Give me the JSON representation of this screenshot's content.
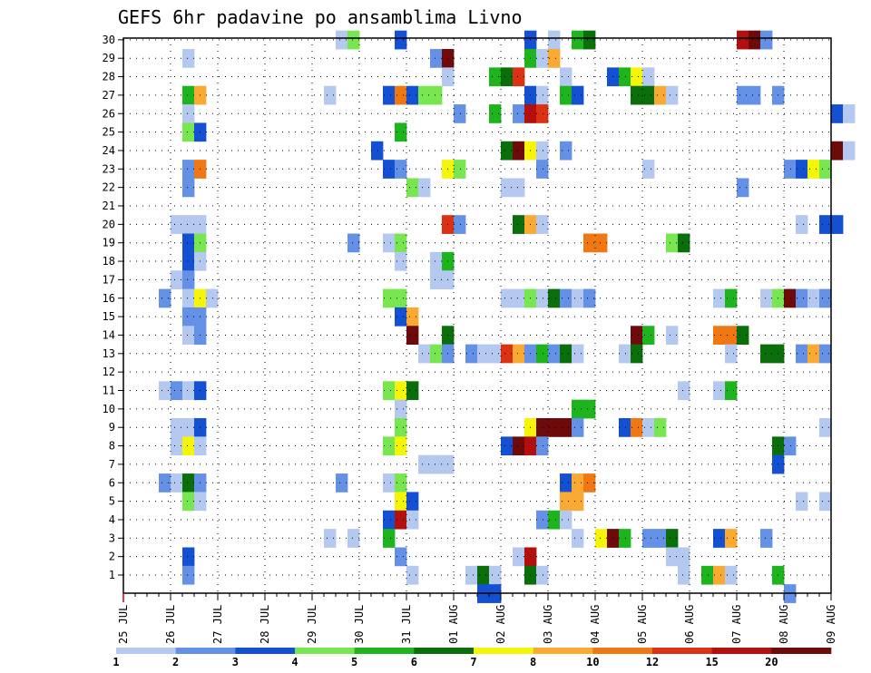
{
  "chart_data": {
    "type": "heatmap",
    "title": "GEFS 6hr padavine po ansamblima Livno",
    "xlabel": "",
    "ylabel": "",
    "x_tick_labels": [
      "25 JUL",
      "26 JUL",
      "27 JUL",
      "28 JUL",
      "29 JUL",
      "30 JUL",
      "31 JUL",
      "01 AUG",
      "02 AUG",
      "03 AUG",
      "04 AUG",
      "05 AUG",
      "06 AUG",
      "07 AUG",
      "08 AUG",
      "09 AUG"
    ],
    "y_tick_labels": [
      "1",
      "2",
      "3",
      "4",
      "5",
      "6",
      "7",
      "8",
      "9",
      "10",
      "11",
      "12",
      "13",
      "14",
      "15",
      "16",
      "17",
      "18",
      "19",
      "20",
      "21",
      "22",
      "23",
      "24",
      "25",
      "26",
      "27",
      "28",
      "29",
      "30"
    ],
    "x_unit": "6-hour step (4 per day), starting 25 JUL 00",
    "grid": true,
    "colorbar": {
      "labels": [
        "1",
        "2",
        "3",
        "4",
        "5",
        "6",
        "7",
        "8",
        "10",
        "12",
        "15",
        "20"
      ],
      "colors": [
        "#b4c8f0",
        "#6491e6",
        "#1450d2",
        "#78e650",
        "#1eb41e",
        "#0a6e0a",
        "#f5f50a",
        "#faaa32",
        "#f07814",
        "#dc3214",
        "#b40f0f",
        "#6e0a0a"
      ]
    },
    "cells_format": "[member, time_step, color_class_index]",
    "cells": [
      [
        30,
        18,
        0
      ],
      [
        30,
        19,
        3
      ],
      [
        30,
        23,
        2
      ],
      [
        30,
        34,
        2
      ],
      [
        30,
        36,
        0
      ],
      [
        30,
        38,
        4
      ],
      [
        30,
        39,
        5
      ],
      [
        30,
        52,
        10
      ],
      [
        30,
        53,
        11
      ],
      [
        30,
        54,
        1
      ],
      [
        29,
        5,
        0
      ],
      [
        29,
        26,
        1
      ],
      [
        29,
        27,
        11
      ],
      [
        29,
        34,
        4
      ],
      [
        29,
        35,
        0
      ],
      [
        29,
        36,
        7
      ],
      [
        28,
        27,
        0
      ],
      [
        28,
        31,
        4
      ],
      [
        28,
        32,
        5
      ],
      [
        28,
        33,
        9
      ],
      [
        28,
        37,
        0
      ],
      [
        28,
        41,
        2
      ],
      [
        28,
        42,
        4
      ],
      [
        28,
        43,
        6
      ],
      [
        28,
        44,
        0
      ],
      [
        27,
        5,
        4
      ],
      [
        27,
        6,
        7
      ],
      [
        27,
        17,
        0
      ],
      [
        27,
        22,
        2
      ],
      [
        27,
        23,
        8
      ],
      [
        27,
        24,
        2
      ],
      [
        27,
        25,
        3
      ],
      [
        27,
        26,
        3
      ],
      [
        27,
        34,
        2
      ],
      [
        27,
        35,
        0
      ],
      [
        27,
        37,
        4
      ],
      [
        27,
        38,
        2
      ],
      [
        27,
        43,
        5
      ],
      [
        27,
        44,
        5
      ],
      [
        27,
        45,
        7
      ],
      [
        27,
        46,
        0
      ],
      [
        27,
        52,
        1
      ],
      [
        27,
        53,
        1
      ],
      [
        27,
        55,
        1
      ],
      [
        26,
        5,
        0
      ],
      [
        26,
        28,
        1
      ],
      [
        26,
        31,
        4
      ],
      [
        26,
        33,
        1
      ],
      [
        26,
        34,
        10
      ],
      [
        26,
        35,
        9
      ],
      [
        26,
        60,
        2
      ],
      [
        26,
        61,
        0
      ],
      [
        25,
        5,
        3
      ],
      [
        25,
        6,
        2
      ],
      [
        25,
        23,
        4
      ],
      [
        24,
        21,
        2
      ],
      [
        24,
        32,
        5
      ],
      [
        24,
        33,
        11
      ],
      [
        24,
        34,
        6
      ],
      [
        24,
        35,
        0
      ],
      [
        24,
        37,
        1
      ],
      [
        24,
        60,
        11
      ],
      [
        24,
        61,
        0
      ],
      [
        23,
        5,
        1
      ],
      [
        23,
        6,
        8
      ],
      [
        23,
        22,
        2
      ],
      [
        23,
        23,
        1
      ],
      [
        23,
        27,
        6
      ],
      [
        23,
        28,
        3
      ],
      [
        23,
        35,
        1
      ],
      [
        23,
        44,
        0
      ],
      [
        23,
        56,
        1
      ],
      [
        23,
        57,
        2
      ],
      [
        23,
        58,
        6
      ],
      [
        23,
        59,
        3
      ],
      [
        22,
        5,
        1
      ],
      [
        22,
        24,
        3
      ],
      [
        22,
        25,
        0
      ],
      [
        22,
        32,
        0
      ],
      [
        22,
        33,
        0
      ],
      [
        22,
        52,
        1
      ],
      [
        20,
        4,
        0
      ],
      [
        20,
        5,
        0
      ],
      [
        20,
        6,
        0
      ],
      [
        20,
        27,
        9
      ],
      [
        20,
        28,
        1
      ],
      [
        20,
        33,
        5
      ],
      [
        20,
        34,
        7
      ],
      [
        20,
        35,
        0
      ],
      [
        20,
        57,
        0
      ],
      [
        20,
        59,
        2
      ],
      [
        20,
        60,
        2
      ],
      [
        19,
        5,
        2
      ],
      [
        19,
        6,
        3
      ],
      [
        19,
        19,
        1
      ],
      [
        19,
        22,
        0
      ],
      [
        19,
        23,
        3
      ],
      [
        19,
        39,
        8
      ],
      [
        19,
        40,
        8
      ],
      [
        19,
        46,
        3
      ],
      [
        19,
        47,
        5
      ],
      [
        18,
        5,
        2
      ],
      [
        18,
        6,
        0
      ],
      [
        18,
        23,
        0
      ],
      [
        18,
        26,
        0
      ],
      [
        18,
        27,
        4
      ],
      [
        17,
        4,
        0
      ],
      [
        17,
        5,
        1
      ],
      [
        17,
        26,
        0
      ],
      [
        17,
        27,
        0
      ],
      [
        16,
        3,
        1
      ],
      [
        16,
        5,
        0
      ],
      [
        16,
        6,
        6
      ],
      [
        16,
        7,
        0
      ],
      [
        16,
        22,
        3
      ],
      [
        16,
        23,
        3
      ],
      [
        16,
        32,
        0
      ],
      [
        16,
        33,
        0
      ],
      [
        16,
        34,
        3
      ],
      [
        16,
        35,
        0
      ],
      [
        16,
        36,
        5
      ],
      [
        16,
        37,
        1
      ],
      [
        16,
        38,
        0
      ],
      [
        16,
        39,
        1
      ],
      [
        16,
        50,
        0
      ],
      [
        16,
        51,
        4
      ],
      [
        16,
        54,
        0
      ],
      [
        16,
        55,
        3
      ],
      [
        16,
        56,
        11
      ],
      [
        16,
        57,
        1
      ],
      [
        16,
        58,
        0
      ],
      [
        16,
        59,
        1
      ],
      [
        15,
        5,
        1
      ],
      [
        15,
        6,
        1
      ],
      [
        15,
        23,
        2
      ],
      [
        15,
        24,
        7
      ],
      [
        14,
        5,
        0
      ],
      [
        14,
        6,
        1
      ],
      [
        14,
        24,
        11
      ],
      [
        14,
        27,
        5
      ],
      [
        14,
        43,
        11
      ],
      [
        14,
        44,
        4
      ],
      [
        14,
        46,
        0
      ],
      [
        14,
        50,
        8
      ],
      [
        14,
        51,
        8
      ],
      [
        14,
        52,
        5
      ],
      [
        13,
        25,
        0
      ],
      [
        13,
        26,
        3
      ],
      [
        13,
        27,
        1
      ],
      [
        13,
        29,
        1
      ],
      [
        13,
        30,
        0
      ],
      [
        13,
        31,
        0
      ],
      [
        13,
        32,
        9
      ],
      [
        13,
        33,
        7
      ],
      [
        13,
        34,
        1
      ],
      [
        13,
        35,
        4
      ],
      [
        13,
        36,
        1
      ],
      [
        13,
        37,
        5
      ],
      [
        13,
        38,
        0
      ],
      [
        13,
        42,
        0
      ],
      [
        13,
        43,
        5
      ],
      [
        13,
        51,
        0
      ],
      [
        13,
        54,
        5
      ],
      [
        13,
        55,
        5
      ],
      [
        13,
        57,
        1
      ],
      [
        13,
        58,
        7
      ],
      [
        13,
        59,
        1
      ],
      [
        11,
        3,
        0
      ],
      [
        11,
        4,
        1
      ],
      [
        11,
        5,
        0
      ],
      [
        11,
        6,
        2
      ],
      [
        11,
        22,
        3
      ],
      [
        11,
        23,
        6
      ],
      [
        11,
        24,
        5
      ],
      [
        11,
        47,
        0
      ],
      [
        11,
        50,
        0
      ],
      [
        11,
        51,
        4
      ],
      [
        10,
        23,
        0
      ],
      [
        10,
        38,
        4
      ],
      [
        10,
        39,
        4
      ],
      [
        9,
        4,
        0
      ],
      [
        9,
        5,
        0
      ],
      [
        9,
        6,
        2
      ],
      [
        9,
        23,
        3
      ],
      [
        9,
        34,
        6
      ],
      [
        9,
        35,
        11
      ],
      [
        9,
        36,
        11
      ],
      [
        9,
        37,
        11
      ],
      [
        9,
        38,
        1
      ],
      [
        9,
        42,
        2
      ],
      [
        9,
        43,
        8
      ],
      [
        9,
        44,
        0
      ],
      [
        9,
        45,
        3
      ],
      [
        9,
        59,
        0
      ],
      [
        8,
        4,
        0
      ],
      [
        8,
        5,
        6
      ],
      [
        8,
        6,
        0
      ],
      [
        8,
        22,
        3
      ],
      [
        8,
        23,
        6
      ],
      [
        8,
        32,
        2
      ],
      [
        8,
        33,
        11
      ],
      [
        8,
        34,
        10
      ],
      [
        8,
        35,
        1
      ],
      [
        8,
        55,
        5
      ],
      [
        8,
        56,
        1
      ],
      [
        7,
        25,
        0
      ],
      [
        7,
        26,
        0
      ],
      [
        7,
        27,
        0
      ],
      [
        7,
        55,
        2
      ],
      [
        6,
        3,
        1
      ],
      [
        6,
        4,
        0
      ],
      [
        6,
        5,
        5
      ],
      [
        6,
        6,
        1
      ],
      [
        6,
        18,
        1
      ],
      [
        6,
        22,
        0
      ],
      [
        6,
        23,
        3
      ],
      [
        6,
        37,
        2
      ],
      [
        6,
        38,
        7
      ],
      [
        6,
        39,
        8
      ],
      [
        5,
        5,
        3
      ],
      [
        5,
        6,
        0
      ],
      [
        5,
        23,
        6
      ],
      [
        5,
        24,
        2
      ],
      [
        5,
        37,
        7
      ],
      [
        5,
        38,
        7
      ],
      [
        5,
        57,
        0
      ],
      [
        5,
        59,
        0
      ],
      [
        4,
        22,
        2
      ],
      [
        4,
        23,
        10
      ],
      [
        4,
        24,
        0
      ],
      [
        4,
        35,
        1
      ],
      [
        4,
        36,
        4
      ],
      [
        4,
        37,
        0
      ],
      [
        3,
        17,
        0
      ],
      [
        3,
        19,
        0
      ],
      [
        3,
        22,
        4
      ],
      [
        3,
        38,
        0
      ],
      [
        3,
        40,
        6
      ],
      [
        3,
        41,
        11
      ],
      [
        3,
        42,
        4
      ],
      [
        3,
        44,
        1
      ],
      [
        3,
        45,
        1
      ],
      [
        3,
        46,
        5
      ],
      [
        3,
        50,
        2
      ],
      [
        3,
        51,
        7
      ],
      [
        3,
        54,
        1
      ],
      [
        2,
        5,
        2
      ],
      [
        2,
        23,
        1
      ],
      [
        2,
        33,
        0
      ],
      [
        2,
        34,
        10
      ],
      [
        2,
        46,
        0
      ],
      [
        2,
        47,
        0
      ],
      [
        1,
        5,
        1
      ],
      [
        1,
        24,
        0
      ],
      [
        1,
        29,
        0
      ],
      [
        1,
        30,
        5
      ],
      [
        1,
        31,
        0
      ],
      [
        1,
        34,
        5
      ],
      [
        1,
        35,
        0
      ],
      [
        1,
        47,
        0
      ],
      [
        1,
        49,
        4
      ],
      [
        1,
        50,
        7
      ],
      [
        1,
        51,
        0
      ],
      [
        1,
        55,
        4
      ],
      [
        0,
        30,
        2
      ],
      [
        0,
        31,
        2
      ],
      [
        0,
        56,
        1
      ]
    ]
  }
}
